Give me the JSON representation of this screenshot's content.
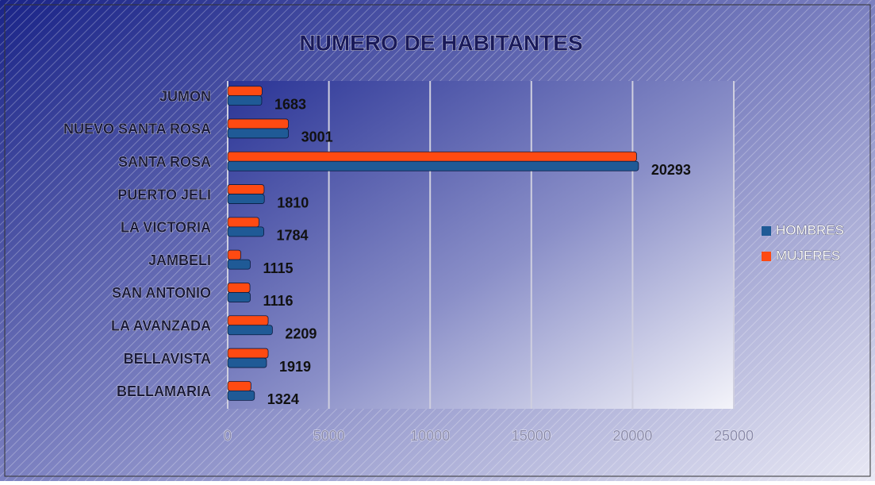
{
  "chart_data": {
    "type": "hbar",
    "title": "NUMERO DE HABITANTES",
    "categories": [
      "JUMON",
      "NUEVO SANTA ROSA",
      "SANTA ROSA",
      "PUERTO JELI",
      "LA VICTORIA",
      "JAMBELI",
      "SAN ANTONIO",
      "LA AVANZADA",
      "BELLAVISTA",
      "BELLAMARIA"
    ],
    "series": [
      {
        "name": "HOMBRES",
        "color": "#1f5a96",
        "values": [
          1683,
          3001,
          20293,
          1810,
          1784,
          1115,
          1116,
          2209,
          1919,
          1324
        ]
      },
      {
        "name": "MUJERES",
        "color": "#ff4a12",
        "values": [
          1700,
          3000,
          20200,
          1800,
          1550,
          650,
          1100,
          2000,
          2000,
          1150
        ]
      }
    ],
    "xlim": [
      0,
      25000
    ],
    "xticks": [
      0,
      5000,
      10000,
      15000,
      20000,
      25000
    ],
    "grid": true,
    "legend": "right"
  }
}
